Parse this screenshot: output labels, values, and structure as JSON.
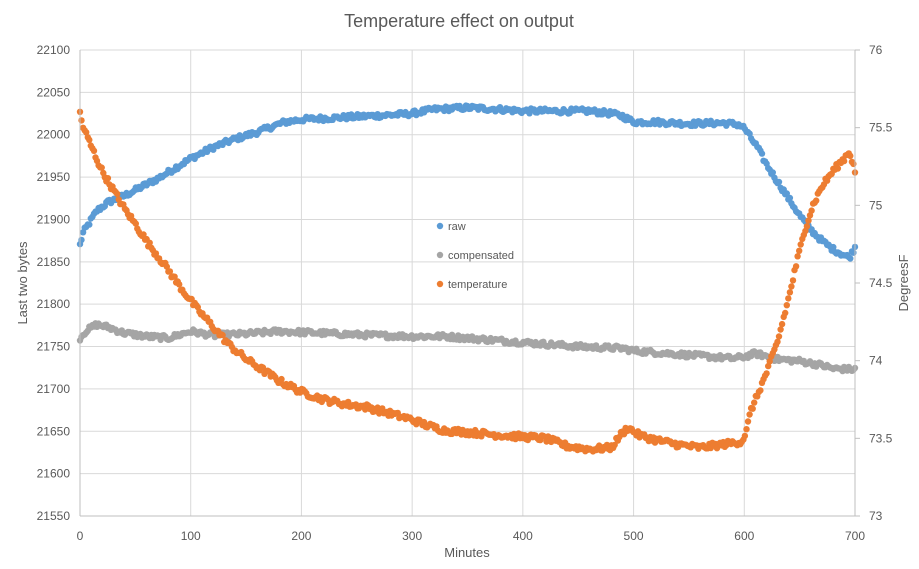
{
  "chart_data": {
    "type": "scatter",
    "title": "Temperature effect on output",
    "xlabel": "Minutes",
    "ylabel": "Last two bytes",
    "y2label": "DegreesF",
    "xlim": [
      0,
      700
    ],
    "ylim": [
      21550,
      22100
    ],
    "y2lim": [
      73,
      76
    ],
    "xticks": [
      "0",
      "100",
      "200",
      "300",
      "400",
      "500",
      "600",
      "700"
    ],
    "yticks": [
      "21550",
      "21600",
      "21650",
      "21700",
      "21750",
      "21800",
      "21850",
      "21900",
      "21950",
      "22000",
      "22050",
      "22100"
    ],
    "y2ticks": [
      "73",
      "73.5",
      "74",
      "74.5",
      "75",
      "75.5",
      "76"
    ],
    "grid": true,
    "legend_position": "center",
    "series": [
      {
        "name": "raw",
        "axis": "left",
        "color": "#5B9BD5",
        "x": [
          0,
          3,
          8,
          15,
          25,
          40,
          55,
          70,
          85,
          100,
          120,
          140,
          160,
          170,
          185,
          200,
          230,
          260,
          290,
          300,
          320,
          350,
          380,
          400,
          430,
          460,
          480,
          490,
          500,
          520,
          550,
          580,
          595,
          600,
          605,
          612,
          620,
          630,
          640,
          650,
          660,
          670,
          680,
          690,
          695,
          700
        ],
        "y": [
          21870,
          21885,
          21895,
          21910,
          21920,
          21928,
          21938,
          21948,
          21960,
          21972,
          21985,
          21995,
          22003,
          22008,
          22015,
          22018,
          22020,
          22022,
          22024,
          22025,
          22030,
          22032,
          22030,
          22028,
          22028,
          22028,
          22025,
          22022,
          22015,
          22015,
          22013,
          22014,
          22012,
          22008,
          21998,
          21985,
          21965,
          21945,
          21925,
          21905,
          21888,
          21875,
          21865,
          21858,
          21855,
          21867
        ]
      },
      {
        "name": "compensated",
        "axis": "left",
        "color": "#A5A5A5",
        "x": [
          0,
          5,
          15,
          25,
          40,
          60,
          80,
          100,
          120,
          150,
          180,
          200,
          250,
          300,
          330,
          350,
          400,
          450,
          490,
          500,
          550,
          590,
          600,
          610,
          630,
          650,
          670,
          680,
          700
        ],
        "y": [
          21760,
          21768,
          21776,
          21773,
          21766,
          21762,
          21760,
          21768,
          21763,
          21765,
          21768,
          21767,
          21764,
          21762,
          21762,
          21760,
          21755,
          21750,
          21748,
          21745,
          21740,
          21736,
          21738,
          21742,
          21735,
          21733,
          21728,
          21724,
          21723
        ]
      },
      {
        "name": "temperature",
        "axis": "right",
        "color": "#ED7D31",
        "x": [
          0,
          2,
          6,
          12,
          20,
          30,
          40,
          50,
          60,
          75,
          90,
          105,
          120,
          135,
          150,
          165,
          180,
          200,
          220,
          240,
          260,
          280,
          300,
          315,
          330,
          350,
          380,
          400,
          420,
          440,
          460,
          480,
          488,
          495,
          505,
          520,
          540,
          560,
          580,
          598,
          602,
          606,
          612,
          620,
          630,
          640,
          648,
          655,
          662,
          670,
          680,
          690,
          695,
          700
        ],
        "y": [
          75.6,
          75.52,
          75.45,
          75.35,
          75.22,
          75.1,
          74.98,
          74.88,
          74.77,
          74.63,
          74.48,
          74.34,
          74.22,
          74.1,
          74.01,
          73.94,
          73.87,
          73.8,
          73.75,
          73.72,
          73.7,
          73.66,
          73.62,
          73.58,
          73.55,
          73.54,
          73.52,
          73.51,
          73.5,
          73.45,
          73.43,
          73.44,
          73.52,
          73.57,
          73.52,
          73.49,
          73.46,
          73.44,
          73.46,
          73.48,
          73.55,
          73.68,
          73.78,
          73.92,
          74.12,
          74.4,
          74.65,
          74.85,
          75.0,
          75.12,
          75.22,
          75.3,
          75.35,
          75.22
        ]
      }
    ]
  }
}
